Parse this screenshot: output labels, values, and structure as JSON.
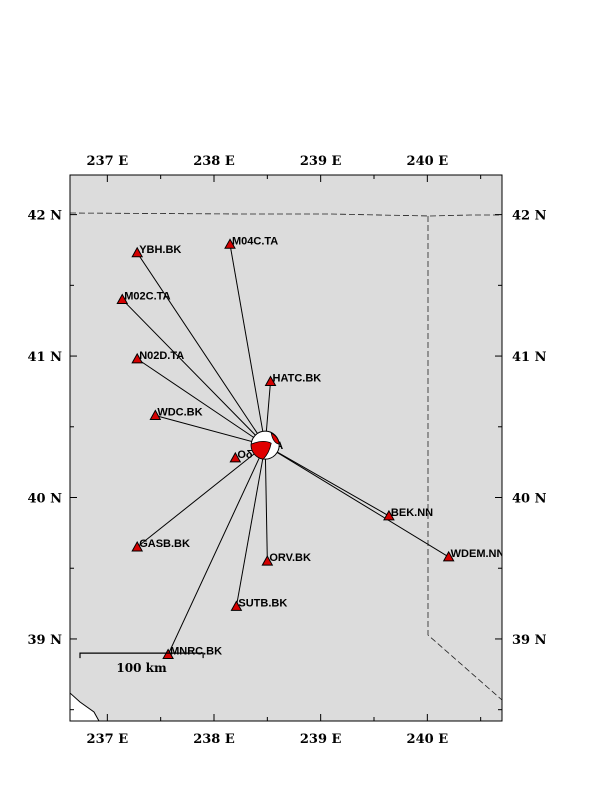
{
  "map": {
    "extent": {
      "lon_min": 236.65,
      "lon_max": 240.7,
      "lat_min": 38.42,
      "lat_max": 42.28
    },
    "land_color": "#dcdcdc",
    "station_color": "#d40000",
    "x_ticks": [
      {
        "lon": 237,
        "label": "237 E"
      },
      {
        "lon": 238,
        "label": "238 E"
      },
      {
        "lon": 239,
        "label": "239 E"
      },
      {
        "lon": 240,
        "label": "240 E"
      }
    ],
    "y_ticks": [
      {
        "lat": 42,
        "label": "42 N"
      },
      {
        "lat": 41,
        "label": "41 N"
      },
      {
        "lat": 40,
        "label": "40 N"
      },
      {
        "lat": 39,
        "label": "39 N"
      }
    ],
    "event": {
      "lon": 238.48,
      "lat": 40.37
    },
    "stations": [
      {
        "name": "YBH.BK",
        "lon": 237.28,
        "lat": 41.73
      },
      {
        "name": "M04C.TA",
        "lon": 238.15,
        "lat": 41.79
      },
      {
        "name": "M02C.TA",
        "lon": 237.14,
        "lat": 41.4
      },
      {
        "name": "N02D.TA",
        "lon": 237.28,
        "lat": 40.98
      },
      {
        "name": "HATC.BK",
        "lon": 238.53,
        "lat": 40.82
      },
      {
        "name": "WDC.BK",
        "lon": 237.45,
        "lat": 40.58
      },
      {
        "name": "Oδ",
        "lon": 238.2,
        "lat": 40.28
      },
      {
        "name": "BEK.NN",
        "lon": 239.64,
        "lat": 39.87
      },
      {
        "name": "WDEM.NN",
        "lon": 240.2,
        "lat": 39.58
      },
      {
        "name": "GASB.BK",
        "lon": 237.28,
        "lat": 39.65
      },
      {
        "name": "ORV.BK",
        "lon": 238.5,
        "lat": 39.55
      },
      {
        "name": "SUTB.BK",
        "lon": 238.21,
        "lat": 39.23
      },
      {
        "name": "MNRC.BK",
        "lon": 237.57,
        "lat": 38.89
      }
    ],
    "station_lines": [
      "YBH.BK",
      "M04C.TA",
      "M02C.TA",
      "N02D.TA",
      "HATC.BK",
      "WDC.BK",
      "BEK.NN",
      "WDEM.NN",
      "GASB.BK",
      "ORV.BK",
      "SUTB.BK",
      "MNRC.BK"
    ],
    "partial_label": "A",
    "scale_bar": {
      "label": "100 km",
      "length_km": 100
    }
  }
}
